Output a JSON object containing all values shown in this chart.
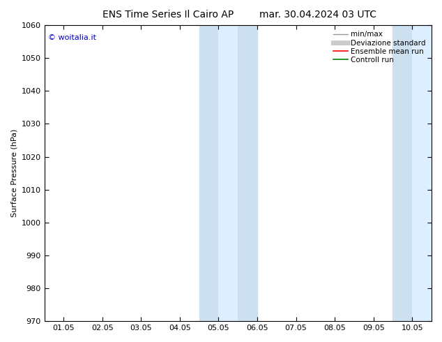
{
  "title_left": "ENS Time Series Il Cairo AP",
  "title_right": "mar. 30.04.2024 03 UTC",
  "ylabel": "Surface Pressure (hPa)",
  "ylim": [
    970,
    1060
  ],
  "yticks": [
    970,
    980,
    990,
    1000,
    1010,
    1020,
    1030,
    1040,
    1050,
    1060
  ],
  "xtick_labels": [
    "01.05",
    "02.05",
    "03.05",
    "04.05",
    "05.05",
    "06.05",
    "07.05",
    "08.05",
    "09.05",
    "10.05"
  ],
  "shaded_bands": [
    {
      "xstart": 3.5,
      "xend": 4.0,
      "color": "#cce0f0"
    },
    {
      "xstart": 4.0,
      "xend": 4.5,
      "color": "#ddeeff"
    },
    {
      "xstart": 4.5,
      "xend": 5.0,
      "color": "#cce0f0"
    },
    {
      "xstart": 8.5,
      "xend": 9.0,
      "color": "#cce0f0"
    },
    {
      "xstart": 9.0,
      "xend": 9.5,
      "color": "#ddeeff"
    }
  ],
  "watermark_text": "© woitalia.it",
  "watermark_color": "#0000cc",
  "background_color": "#ffffff",
  "legend_items": [
    {
      "label": "min/max",
      "color": "#999999",
      "linestyle": "-",
      "linewidth": 1.0
    },
    {
      "label": "Deviazione standard",
      "color": "#cccccc",
      "linestyle": "-",
      "linewidth": 5
    },
    {
      "label": "Ensemble mean run",
      "color": "#ff0000",
      "linestyle": "-",
      "linewidth": 1.2
    },
    {
      "label": "Controll run",
      "color": "#008000",
      "linestyle": "-",
      "linewidth": 1.2
    }
  ],
  "title_fontsize": 10,
  "ylabel_fontsize": 8,
  "tick_fontsize": 8,
  "legend_fontsize": 7.5,
  "watermark_fontsize": 8
}
